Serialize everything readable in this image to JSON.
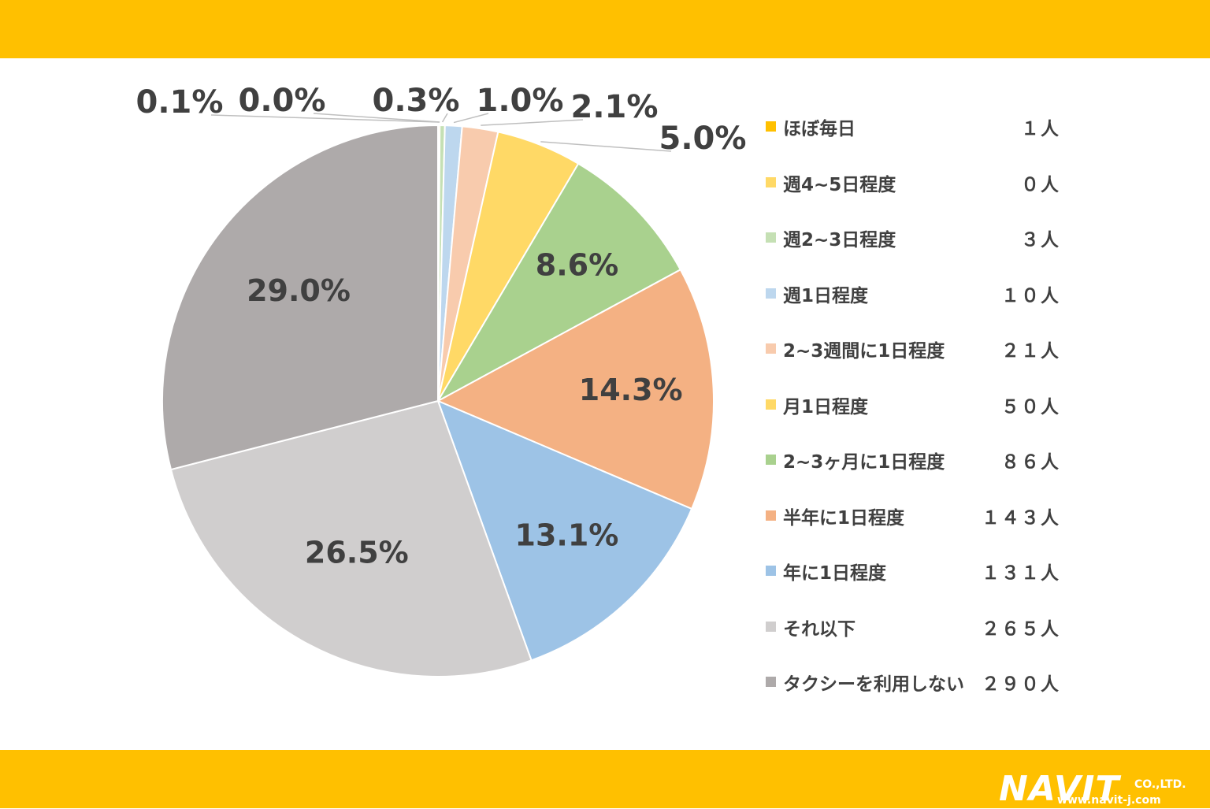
{
  "colors": {
    "band": "#ffc000",
    "text": "#404040",
    "leader": "#bfbfbf"
  },
  "chart_data": {
    "type": "pie",
    "start_angle_deg": 0,
    "direction": "clockwise",
    "slices": [
      {
        "label": "ほぼ毎日",
        "count": "１人",
        "value": 0.1,
        "value_label": "0.1%",
        "color": "#ffc000"
      },
      {
        "label": "週4~5日程度",
        "count": "０人",
        "value": 0.0,
        "value_label": "0.0%",
        "color": "#ffd966"
      },
      {
        "label": "週2~3日程度",
        "count": "３人",
        "value": 0.3,
        "value_label": "0.3%",
        "color": "#c5e0b4"
      },
      {
        "label": "週1日程度",
        "count": "１０人",
        "value": 1.0,
        "value_label": "1.0%",
        "color": "#bdd7ee"
      },
      {
        "label": "2~3週間に1日程度",
        "count": "２１人",
        "value": 2.1,
        "value_label": "2.1%",
        "color": "#f8cbad"
      },
      {
        "label": "月1日程度",
        "count": "５０人",
        "value": 5.0,
        "value_label": "5.0%",
        "color": "#ffd966"
      },
      {
        "label": "2~3ヶ月に1日程度",
        "count": "８６人",
        "value": 8.6,
        "value_label": "8.6%",
        "color": "#a9d18e"
      },
      {
        "label": "半年に1日程度",
        "count": "１４３人",
        "value": 14.3,
        "value_label": "14.3%",
        "color": "#f4b183"
      },
      {
        "label": "年に1日程度",
        "count": "１３１人",
        "value": 13.1,
        "value_label": "13.1%",
        "color": "#9dc3e6"
      },
      {
        "label": "それ以下",
        "count": "２６５人",
        "value": 26.5,
        "value_label": "26.5%",
        "color": "#d0cece"
      },
      {
        "label": "タクシーを利用しない",
        "count": "２９０人",
        "value": 29.0,
        "value_label": "29.0%",
        "color": "#aeaaaa"
      }
    ],
    "legend_position": "right"
  },
  "logo": {
    "mark": "NAVIT",
    "suffix": "CO.,LTD.",
    "url": "www.navit-j.com"
  }
}
